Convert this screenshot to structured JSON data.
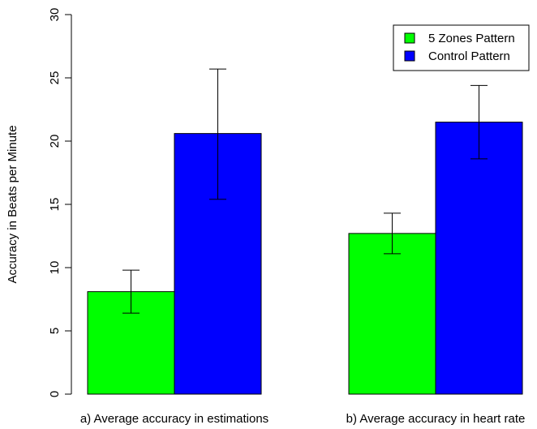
{
  "chart_data": {
    "type": "bar",
    "categories": [
      "a) Average accuracy in estimations",
      "b) Average accuracy in heart rate"
    ],
    "series": [
      {
        "name": "5 Zones Pattern",
        "color": "#00ff00",
        "values": [
          8.1,
          12.7
        ],
        "error_low": [
          6.4,
          11.1
        ],
        "error_high": [
          9.8,
          14.3
        ]
      },
      {
        "name": "Control Pattern",
        "color": "#0000ff",
        "values": [
          20.6,
          21.5
        ],
        "error_low": [
          15.4,
          18.6
        ],
        "error_high": [
          25.7,
          24.4
        ]
      }
    ],
    "title": "",
    "xlabel": "",
    "ylabel": "Accuracy in Beats per Minute",
    "ylim": [
      0,
      30
    ],
    "yticks": [
      0,
      5,
      10,
      15,
      20,
      25,
      30
    ],
    "grid": false,
    "legend_position": "top-right"
  }
}
